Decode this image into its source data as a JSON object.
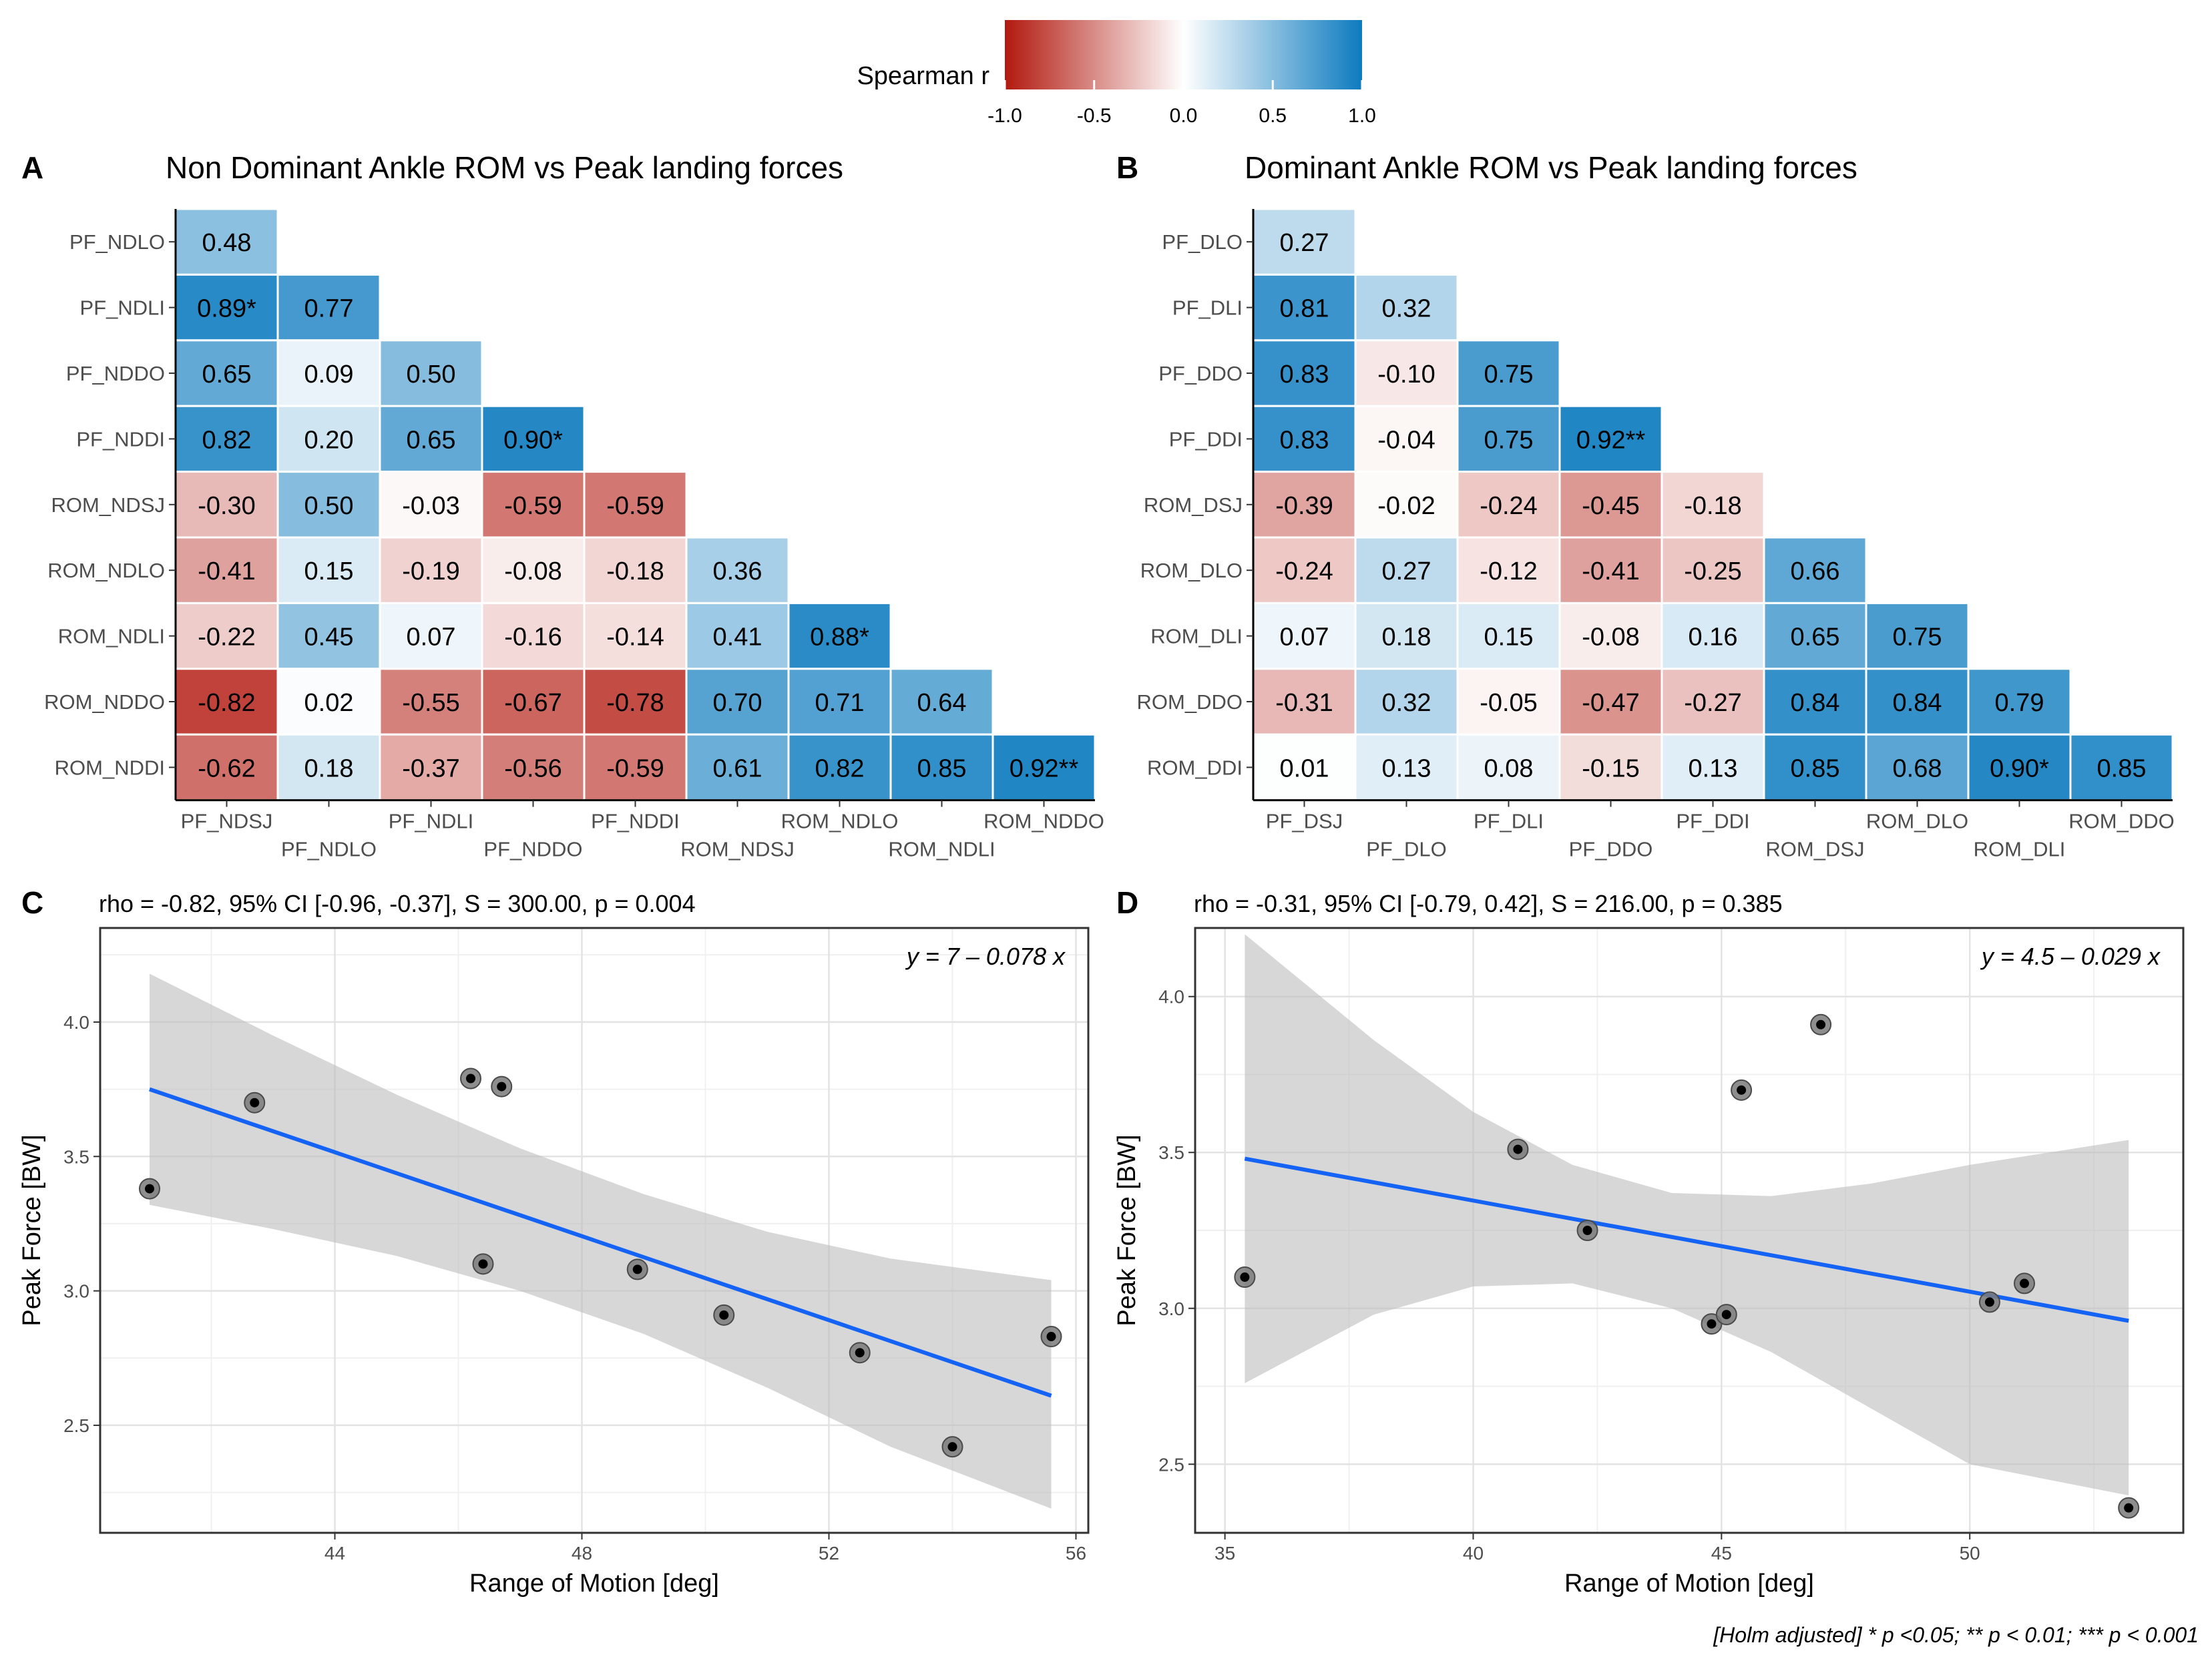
{
  "colorbar": {
    "label": "Spearman r",
    "ticks": [
      "-1.0",
      "-0.5",
      "0.0",
      "0.5",
      "1.0"
    ],
    "tick_values": [
      -1.0,
      -0.5,
      0.0,
      0.5,
      1.0
    ],
    "color_low": "#b2190f",
    "color_mid": "#ffffff",
    "color_high": "#0d7bbf"
  },
  "footnote": "[Holm adjusted] * p <0.05; ** p < 0.01; *** p < 0.001",
  "chart_data": [
    {
      "panel": "A",
      "type": "heatmap",
      "title": "Non Dominant Ankle ROM vs Peak landing forces",
      "rows": [
        "PF_NDLO",
        "PF_NDLI",
        "PF_NDDO",
        "PF_NDDI",
        "ROM_NDSJ",
        "ROM_NDLO",
        "ROM_NDLI",
        "ROM_NDDO",
        "ROM_NDDI"
      ],
      "columns": [
        "PF_NDSJ",
        "PF_NDLO",
        "PF_NDLI",
        "PF_NDDO",
        "PF_NDDI",
        "ROM_NDSJ",
        "ROM_NDLO",
        "ROM_NDLI",
        "ROM_NDDO"
      ],
      "values": [
        [
          0.48
        ],
        [
          0.89,
          0.77
        ],
        [
          0.65,
          0.09,
          0.5
        ],
        [
          0.82,
          0.2,
          0.65,
          0.9
        ],
        [
          -0.3,
          0.5,
          -0.03,
          -0.59,
          -0.59
        ],
        [
          -0.41,
          0.15,
          -0.19,
          -0.08,
          -0.18,
          0.36
        ],
        [
          -0.22,
          0.45,
          0.07,
          -0.16,
          -0.14,
          0.41,
          0.88
        ],
        [
          -0.82,
          0.02,
          -0.55,
          -0.67,
          -0.78,
          0.7,
          0.71,
          0.64
        ],
        [
          -0.62,
          0.18,
          -0.37,
          -0.56,
          -0.59,
          0.61,
          0.82,
          0.85,
          0.92
        ]
      ],
      "labels": [
        [
          "0.48"
        ],
        [
          "0.89*",
          "0.77"
        ],
        [
          "0.65",
          "0.09",
          "0.50"
        ],
        [
          "0.82",
          "0.20",
          "0.65",
          "0.90*"
        ],
        [
          "-0.30",
          "0.50",
          "-0.03",
          "-0.59",
          "-0.59"
        ],
        [
          "-0.41",
          "0.15",
          "-0.19",
          "-0.08",
          "-0.18",
          "0.36"
        ],
        [
          "-0.22",
          "0.45",
          "0.07",
          "-0.16",
          "-0.14",
          "0.41",
          "0.88*"
        ],
        [
          "-0.82",
          "0.02",
          "-0.55",
          "-0.67",
          "-0.78",
          "0.70",
          "0.71",
          "0.64"
        ],
        [
          "-0.62",
          "0.18",
          "-0.37",
          "-0.56",
          "-0.59",
          "0.61",
          "0.82",
          "0.85",
          "0.92**"
        ]
      ]
    },
    {
      "panel": "B",
      "type": "heatmap",
      "title": "Dominant Ankle ROM vs Peak landing forces",
      "rows": [
        "PF_DLO",
        "PF_DLI",
        "PF_DDO",
        "PF_DDI",
        "ROM_DSJ",
        "ROM_DLO",
        "ROM_DLI",
        "ROM_DDO",
        "ROM_DDI"
      ],
      "columns": [
        "PF_DSJ",
        "PF_DLO",
        "PF_DLI",
        "PF_DDO",
        "PF_DDI",
        "ROM_DSJ",
        "ROM_DLO",
        "ROM_DLI",
        "ROM_DDO"
      ],
      "values": [
        [
          0.27
        ],
        [
          0.81,
          0.32
        ],
        [
          0.83,
          -0.1,
          0.75
        ],
        [
          0.83,
          -0.04,
          0.75,
          0.92
        ],
        [
          -0.39,
          -0.02,
          -0.24,
          -0.45,
          -0.18
        ],
        [
          -0.24,
          0.27,
          -0.12,
          -0.41,
          -0.25,
          0.66
        ],
        [
          0.07,
          0.18,
          0.15,
          -0.08,
          0.16,
          0.65,
          0.75
        ],
        [
          -0.31,
          0.32,
          -0.05,
          -0.47,
          -0.27,
          0.84,
          0.84,
          0.79
        ],
        [
          0.01,
          0.13,
          0.08,
          -0.15,
          0.13,
          0.85,
          0.68,
          0.9,
          0.85
        ]
      ],
      "labels": [
        [
          "0.27"
        ],
        [
          "0.81",
          "0.32"
        ],
        [
          "0.83",
          "-0.10",
          "0.75"
        ],
        [
          "0.83",
          "-0.04",
          "0.75",
          "0.92**"
        ],
        [
          "-0.39",
          "-0.02",
          "-0.24",
          "-0.45",
          "-0.18"
        ],
        [
          "-0.24",
          "0.27",
          "-0.12",
          "-0.41",
          "-0.25",
          "0.66"
        ],
        [
          "0.07",
          "0.18",
          "0.15",
          "-0.08",
          "0.16",
          "0.65",
          "0.75"
        ],
        [
          "-0.31",
          "0.32",
          "-0.05",
          "-0.47",
          "-0.27",
          "0.84",
          "0.84",
          "0.79"
        ],
        [
          "0.01",
          "0.13",
          "0.08",
          "-0.15",
          "0.13",
          "0.85",
          "0.68",
          "0.90*",
          "0.85"
        ]
      ]
    },
    {
      "panel": "C",
      "type": "scatter",
      "title": "rho = -0.82, 95% CI [-0.96, -0.37], S = 300.00, p = 0.004",
      "equation": "y = 7 – 0.078 x",
      "xlabel": "Range of Motion [deg]",
      "ylabel": "Peak Force [BW]",
      "xlim": [
        40.2,
        56.2
      ],
      "ylim": [
        2.1,
        4.35
      ],
      "xticks": [
        44,
        48,
        52,
        56
      ],
      "yticks": [
        2.5,
        3.0,
        3.5,
        4.0
      ],
      "xtick_labels": [
        "44",
        "48",
        "52",
        "56"
      ],
      "ytick_labels": [
        "2.5",
        "3.0",
        "3.5",
        "4.0"
      ],
      "points": [
        {
          "x": 41.0,
          "y": 3.38
        },
        {
          "x": 42.7,
          "y": 3.7
        },
        {
          "x": 46.2,
          "y": 3.79
        },
        {
          "x": 46.7,
          "y": 3.76
        },
        {
          "x": 46.4,
          "y": 3.1
        },
        {
          "x": 48.9,
          "y": 3.08
        },
        {
          "x": 50.3,
          "y": 2.91
        },
        {
          "x": 52.5,
          "y": 2.77
        },
        {
          "x": 54.0,
          "y": 2.42
        },
        {
          "x": 55.6,
          "y": 2.83
        }
      ],
      "fit": {
        "x": [
          41.0,
          55.6
        ],
        "y": [
          3.75,
          2.61
        ]
      },
      "band": {
        "x": [
          41.0,
          43.0,
          45.0,
          47.0,
          49.0,
          51.0,
          53.0,
          55.6
        ],
        "upper": [
          4.18,
          3.95,
          3.73,
          3.53,
          3.36,
          3.22,
          3.12,
          3.04
        ],
        "lower": [
          3.32,
          3.23,
          3.13,
          3.0,
          2.84,
          2.64,
          2.42,
          2.19
        ]
      }
    },
    {
      "panel": "D",
      "type": "scatter",
      "title": "rho = -0.31, 95% CI [-0.79, 0.42], S = 216.00, p = 0.385",
      "equation": "y = 4.5 – 0.029 x",
      "xlabel": "Range of Motion [deg]",
      "ylabel": "Peak Force [BW]",
      "xlim": [
        34.4,
        54.3
      ],
      "ylim": [
        2.28,
        4.22
      ],
      "xticks": [
        35,
        40,
        45,
        50
      ],
      "yticks": [
        2.5,
        3.0,
        3.5,
        4.0
      ],
      "xtick_labels": [
        "35",
        "40",
        "45",
        "50"
      ],
      "ytick_labels": [
        "2.5",
        "3.0",
        "3.5",
        "4.0"
      ],
      "points": [
        {
          "x": 35.4,
          "y": 3.1
        },
        {
          "x": 40.9,
          "y": 3.51
        },
        {
          "x": 42.3,
          "y": 3.25
        },
        {
          "x": 44.8,
          "y": 2.95
        },
        {
          "x": 45.1,
          "y": 2.98
        },
        {
          "x": 45.4,
          "y": 3.7
        },
        {
          "x": 47.0,
          "y": 3.91
        },
        {
          "x": 50.4,
          "y": 3.02
        },
        {
          "x": 51.1,
          "y": 3.08
        },
        {
          "x": 53.2,
          "y": 2.36
        }
      ],
      "fit": {
        "x": [
          35.4,
          53.2
        ],
        "y": [
          3.48,
          2.96
        ]
      },
      "band": {
        "x": [
          35.4,
          38.0,
          40.0,
          42.0,
          44.0,
          46.0,
          48.0,
          50.0,
          53.2
        ],
        "upper": [
          4.2,
          3.86,
          3.63,
          3.46,
          3.37,
          3.36,
          3.4,
          3.46,
          3.54
        ],
        "lower": [
          2.76,
          2.98,
          3.07,
          3.08,
          3.0,
          2.86,
          2.68,
          2.5,
          2.4
        ]
      }
    }
  ]
}
